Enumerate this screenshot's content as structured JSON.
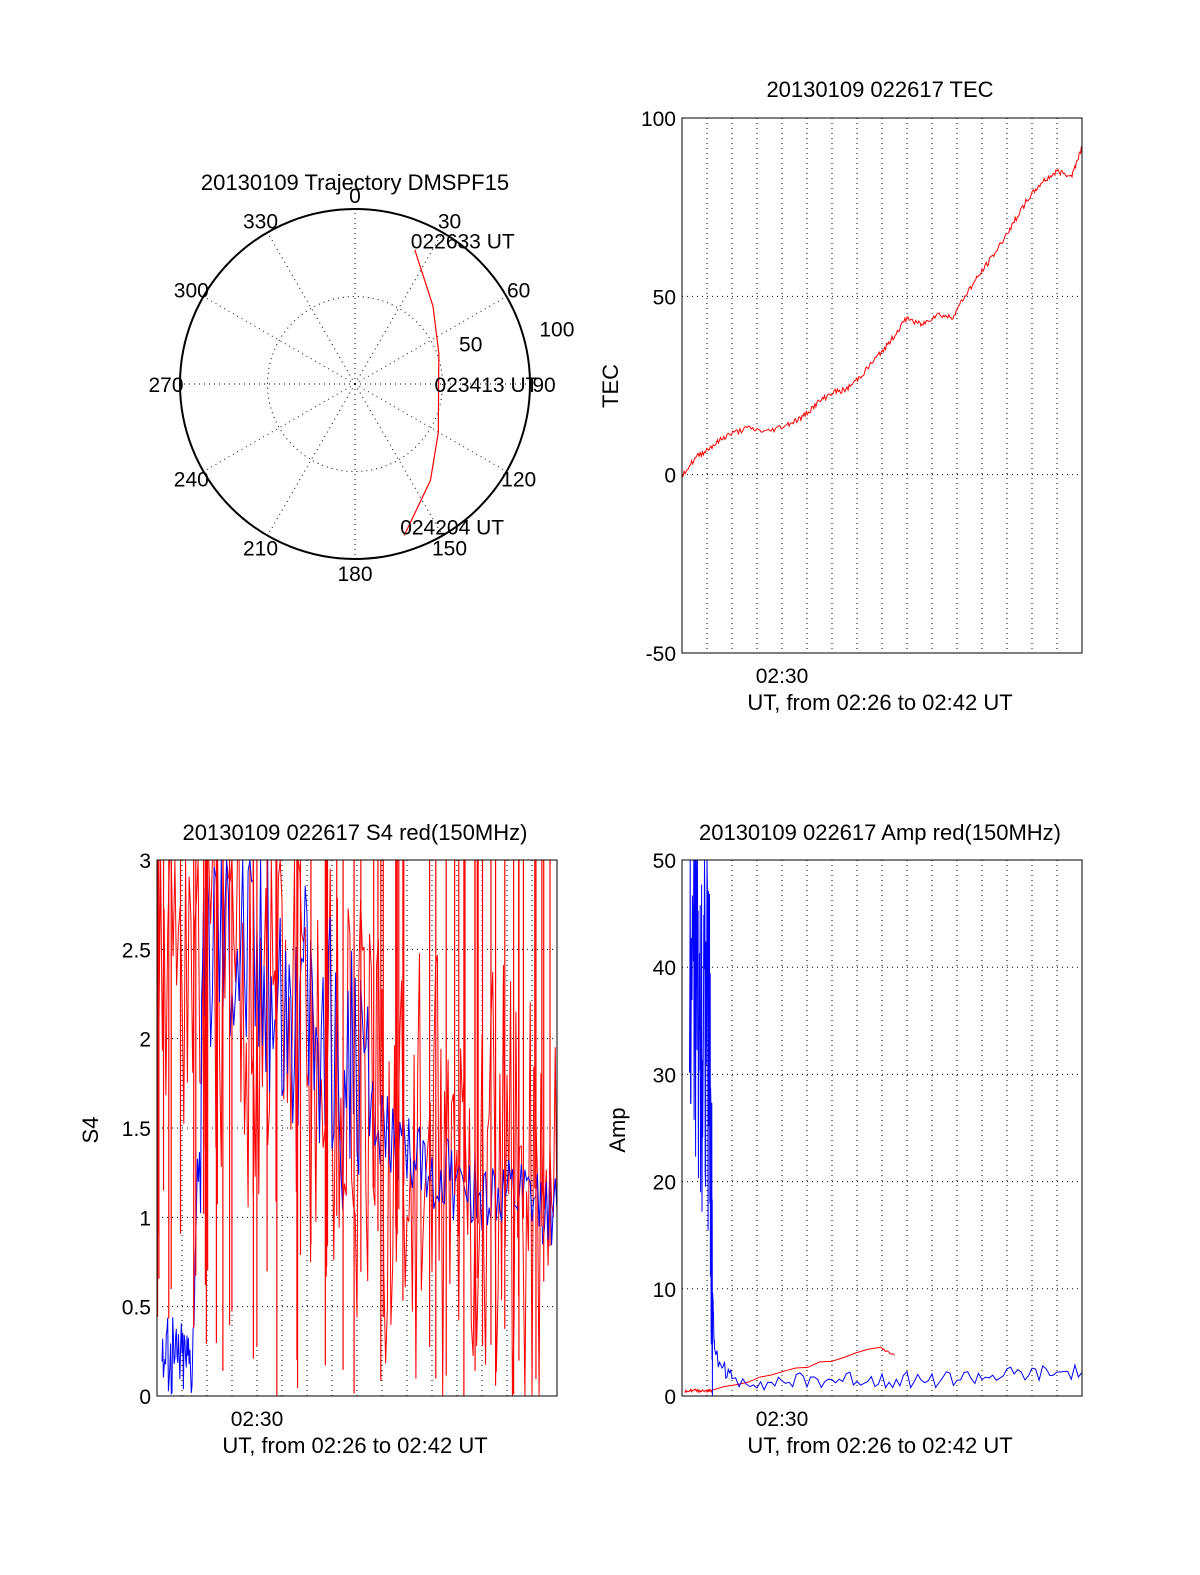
{
  "chart_data": [
    {
      "type": "polar",
      "title": "20130109 Trajectory DMSPF15",
      "angle_labels": [
        "0",
        "30",
        "60",
        "90",
        "120",
        "150",
        "180",
        "210",
        "240",
        "270",
        "300",
        "330"
      ],
      "radius_labels": [
        "50",
        "100"
      ],
      "radius_range": [
        0,
        100
      ],
      "grid": true,
      "series": [
        {
          "color": "#ff0000",
          "points": [
            {
              "az": 24,
              "r": 84
            },
            {
              "az": 45,
              "r": 63
            },
            {
              "az": 70,
              "r": 51
            },
            {
              "az": 96,
              "r": 48
            },
            {
              "az": 120,
              "r": 55
            },
            {
              "az": 142,
              "r": 70
            },
            {
              "az": 162,
              "r": 91
            }
          ]
        }
      ],
      "annotations": [
        {
          "text": "022633 UT",
          "az": 24,
          "r": 84
        },
        {
          "text": "023413 UT",
          "az": 96,
          "r": 48
        },
        {
          "text": "024204 UT",
          "az": 162,
          "r": 91
        }
      ]
    },
    {
      "type": "line",
      "title": "20130109 022617 TEC",
      "xlabel": "UT, from 02:26 to 02:42 UT",
      "ylabel": "TEC",
      "xlim": [
        0,
        16
      ],
      "ylim": [
        -50,
        100
      ],
      "yticks": [
        "-50",
        "0",
        "50",
        "100"
      ],
      "xticks": [
        {
          "label": "02:30",
          "at": 4
        }
      ],
      "grid": true,
      "series": [
        {
          "color": "#ff0000",
          "x": [
            0,
            0.6,
            1.2,
            1.8,
            2.6,
            3.4,
            4.2,
            4.8,
            5.4,
            6.0,
            6.6,
            7.2,
            7.8,
            8.4,
            9.0,
            9.6,
            10.2,
            10.8,
            11.4,
            12.0,
            12.6,
            13.2,
            13.8,
            14.4,
            15.0,
            15.6,
            16.0
          ],
          "y": [
            0,
            5,
            8,
            11,
            13,
            12,
            14,
            16,
            20,
            23,
            24,
            28,
            33,
            38,
            44,
            42,
            45,
            44,
            51,
            57,
            63,
            70,
            77,
            82,
            85,
            84,
            92
          ]
        }
      ]
    },
    {
      "type": "line",
      "title": "20130109 022617 S4 red(150MHz)",
      "xlabel": "UT, from 02:26 to 02:42 UT",
      "ylabel": "S4",
      "xlim": [
        0,
        16
      ],
      "ylim": [
        0,
        3
      ],
      "yticks": [
        "0",
        "0.5",
        "1",
        "1.5",
        "2",
        "2.5",
        "3"
      ],
      "xticks": [
        {
          "label": "02:30",
          "at": 4
        }
      ],
      "grid": true,
      "series": [
        {
          "color": "#ff0000",
          "x": [
            0,
            1,
            2,
            3,
            4,
            5,
            6,
            7,
            8,
            9,
            10,
            11,
            12,
            13,
            14,
            15,
            16
          ],
          "y": [
            2.9,
            2.6,
            2.4,
            2.5,
            2.2,
            2.3,
            2.0,
            1.9,
            1.6,
            1.4,
            1.3,
            1.2,
            1.1,
            1.2,
            1.1,
            1.1,
            1.0
          ]
        },
        {
          "color": "#0000ff",
          "x": [
            0.2,
            0.6,
            1.0,
            1.4,
            2.0,
            3.0,
            4.0,
            5.0,
            6.0,
            7.0,
            8.0,
            9.0,
            10.0,
            11.0,
            12.0,
            13.0,
            14.0,
            15.0,
            16.0
          ],
          "y": [
            0.25,
            0.22,
            0.26,
            0.24,
            2.7,
            2.8,
            2.5,
            2.3,
            2.1,
            1.9,
            1.7,
            1.5,
            1.35,
            1.25,
            1.2,
            1.15,
            1.1,
            1.08,
            1.05
          ]
        }
      ]
    },
    {
      "type": "line",
      "title": "20130109 022617 Amp red(150MHz)",
      "xlabel": "UT, from 02:26 to 02:42 UT",
      "ylabel": "Amp",
      "xlim": [
        0,
        16
      ],
      "ylim": [
        0,
        50
      ],
      "yticks": [
        "0",
        "10",
        "20",
        "30",
        "40",
        "50"
      ],
      "xticks": [
        {
          "label": "02:30",
          "at": 4
        }
      ],
      "grid": true,
      "series": [
        {
          "color": "#ff0000",
          "x": [
            0.1,
            0.5,
            1.0,
            1.2,
            7.9,
            8.5
          ],
          "y": [
            0.5,
            0.5,
            0.5,
            0.5,
            4.5,
            3.8
          ]
        },
        {
          "color": "#0000ff",
          "x": [
            0.3,
            0.5,
            0.7,
            0.9,
            1.1,
            1.2,
            1.3,
            2,
            4,
            6,
            8,
            10,
            12,
            14,
            16
          ],
          "y": [
            38,
            42,
            35,
            39,
            30,
            12,
            4,
            1.5,
            1.3,
            1.5,
            1.6,
            1.5,
            1.8,
            2.0,
            2.2
          ]
        }
      ]
    }
  ]
}
